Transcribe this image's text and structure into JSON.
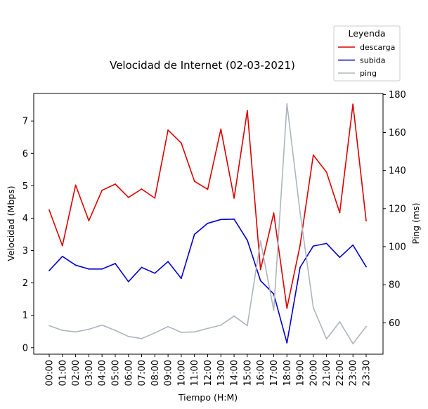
{
  "chart_data": {
    "type": "line",
    "title": "Velocidad de Internet (02-03-2021)",
    "xlabel": "Tiempo (H:M)",
    "ylabel": "Velocidad (Mbps)",
    "y2label": "Ping (ms)",
    "ylim": [
      -0.2,
      7.85
    ],
    "y2lim": [
      43.5,
      180.5
    ],
    "yticks": [
      0,
      1,
      2,
      3,
      4,
      5,
      6,
      7
    ],
    "y2ticks": [
      60,
      80,
      100,
      120,
      140,
      160,
      180
    ],
    "grid": false,
    "legend": {
      "title": "Leyenda",
      "placement": "top-right, outside plot"
    },
    "categories": [
      "00:00",
      "01:00",
      "02:00",
      "03:00",
      "04:00",
      "05:00",
      "06:00",
      "07:00",
      "08:00",
      "09:00",
      "10:00",
      "11:00",
      "12:00",
      "13:00",
      "14:00",
      "15:00",
      "16:00",
      "17:00",
      "18:00",
      "19:00",
      "20:00",
      "21:00",
      "22:00",
      "23:00",
      "23:30"
    ],
    "series": [
      {
        "name": "descarga",
        "axis": "left",
        "color": "#dd0000",
        "values": [
          4.25,
          3.15,
          5.02,
          3.92,
          4.86,
          5.05,
          4.64,
          4.9,
          4.62,
          6.72,
          6.32,
          5.14,
          4.89,
          6.75,
          4.62,
          7.32,
          2.41,
          4.16,
          1.22,
          3.16,
          5.95,
          5.42,
          4.17,
          7.52,
          3.92
        ]
      },
      {
        "name": "subida",
        "axis": "left",
        "color": "#0000cc",
        "values": [
          2.38,
          2.82,
          2.55,
          2.43,
          2.43,
          2.6,
          2.04,
          2.48,
          2.3,
          2.66,
          2.14,
          3.5,
          3.84,
          3.96,
          3.97,
          3.32,
          2.07,
          1.66,
          0.15,
          2.48,
          3.14,
          3.22,
          2.79,
          3.17,
          2.5
        ]
      },
      {
        "name": "ping",
        "axis": "right",
        "color": "#adb5bd",
        "values": [
          58.5,
          56.0,
          55.2,
          56.6,
          58.8,
          56.0,
          52.8,
          51.7,
          54.7,
          58.0,
          55.0,
          55.2,
          57.0,
          58.8,
          63.5,
          58.5,
          103.0,
          66.5,
          175.0,
          118.0,
          68.0,
          51.5,
          60.5,
          49.0,
          58.0
        ]
      }
    ]
  }
}
